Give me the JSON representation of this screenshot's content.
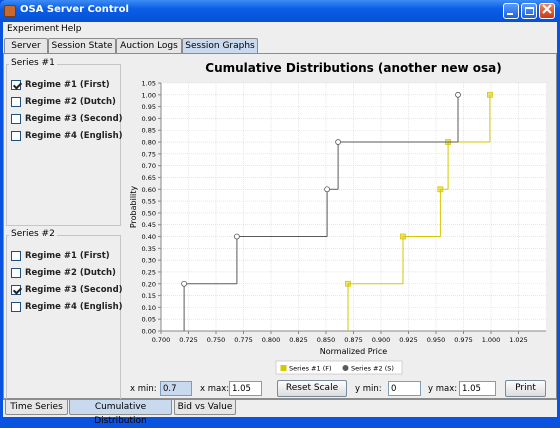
{
  "window": {
    "title": "OSA Server Control"
  },
  "menu": [
    "Experiment",
    "Help"
  ],
  "tabs": [
    "Server",
    "Session State",
    "Auction Logs",
    "Session Graphs"
  ],
  "selected_tab": 3,
  "series_panels": [
    {
      "title": "Series #1",
      "options": [
        {
          "label": "Regime #1 (First)",
          "checked": true
        },
        {
          "label": "Regime #2 (Dutch)",
          "checked": false
        },
        {
          "label": "Regime #3 (Second)",
          "checked": false
        },
        {
          "label": "Regime #4 (English)",
          "checked": false
        }
      ]
    },
    {
      "title": "Series #2",
      "options": [
        {
          "label": "Regime #1 (First)",
          "checked": false
        },
        {
          "label": "Regime #2 (Dutch)",
          "checked": false
        },
        {
          "label": "Regime #3 (Second)",
          "checked": true
        },
        {
          "label": "Regime #4 (English)",
          "checked": false
        }
      ]
    }
  ],
  "chart": {
    "type": "step",
    "title": "Cumulative Distributions (another new osa)",
    "x_label": "Normalized Price",
    "y_label": "Probability",
    "xlim": [
      0.7,
      1.05
    ],
    "ylim": [
      0,
      1.05
    ],
    "grid": true,
    "xticks": [
      {
        "value": 0.7,
        "label": "0.700"
      },
      {
        "value": 0.725,
        "label": "0.725"
      },
      {
        "value": 0.75,
        "label": "0.750"
      },
      {
        "value": 0.775,
        "label": "0.775"
      },
      {
        "value": 0.8,
        "label": "0.800"
      },
      {
        "value": 0.825,
        "label": "0.825"
      },
      {
        "value": 0.85,
        "label": "0.850"
      },
      {
        "value": 0.875,
        "label": "0.875"
      },
      {
        "value": 0.9,
        "label": "0.900"
      },
      {
        "value": 0.925,
        "label": "0.925"
      },
      {
        "value": 0.95,
        "label": "0.950"
      },
      {
        "value": 0.975,
        "label": "0.975"
      },
      {
        "value": 1,
        "label": "1.000"
      },
      {
        "value": 1.025,
        "label": "1.025"
      }
    ],
    "yticks": [
      {
        "value": 0,
        "label": "0.00"
      },
      {
        "value": 0.05,
        "label": "0.05"
      },
      {
        "value": 0.1,
        "label": "0.10"
      },
      {
        "value": 0.15,
        "label": "0.15"
      },
      {
        "value": 0.2,
        "label": "0.20"
      },
      {
        "value": 0.25,
        "label": "0.25"
      },
      {
        "value": 0.3,
        "label": "0.30"
      },
      {
        "value": 0.35,
        "label": "0.35"
      },
      {
        "value": 0.4,
        "label": "0.40"
      },
      {
        "value": 0.45,
        "label": "0.45"
      },
      {
        "value": 0.5,
        "label": "0.50"
      },
      {
        "value": 0.55,
        "label": "0.55"
      },
      {
        "value": 0.6,
        "label": "0.60"
      },
      {
        "value": 0.65,
        "label": "0.65"
      },
      {
        "value": 0.7,
        "label": "0.70"
      },
      {
        "value": 0.75,
        "label": "0.75"
      },
      {
        "value": 0.8,
        "label": "0.80"
      },
      {
        "value": 0.85,
        "label": "0.85"
      },
      {
        "value": 0.9,
        "label": "0.90"
      },
      {
        "value": 0.95,
        "label": "0.95"
      },
      {
        "value": 1,
        "label": "1.00"
      },
      {
        "value": 1.05,
        "label": "1.05"
      }
    ],
    "series": [
      {
        "name": "Series #1 (F)",
        "color": "#d6c800",
        "marker": "square",
        "x": [
          0.87,
          0.92,
          0.954,
          0.961,
          0.999
        ],
        "values": [
          0.2,
          0.4,
          0.6,
          0.8,
          1.0
        ]
      },
      {
        "name": "Series #2 (S)",
        "color": "#5a5a5a",
        "marker": "circle",
        "x": [
          0.721,
          0.769,
          0.851,
          0.861,
          0.97
        ],
        "values": [
          0.2,
          0.4,
          0.6,
          0.8,
          1.0
        ]
      }
    ]
  },
  "controls": {
    "x_min_label": "x min:",
    "x_min": 0.7,
    "x_max_label": "x max:",
    "x_max": 1.05,
    "reset": "Reset Scale",
    "y_min_label": "y min:",
    "y_min": 0,
    "y_max_label": "y max:",
    "y_max": 1.05,
    "print": "Print"
  },
  "bottom_tabs": [
    "Time Series",
    "Cumulative Distribution",
    "Bid vs Value"
  ],
  "selected_bottom_tab": 1
}
